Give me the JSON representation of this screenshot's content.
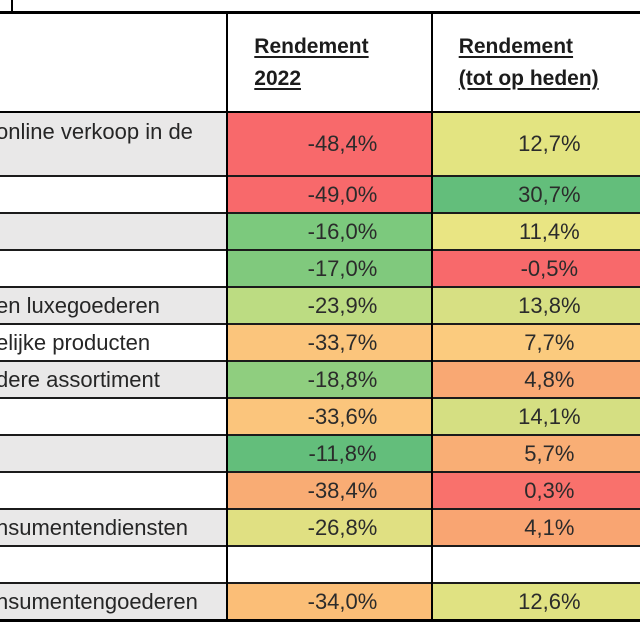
{
  "page": {
    "background": "#FFFFFF"
  },
  "table": {
    "header": {
      "label_col": "",
      "col_2022_line1": "Rendement",
      "col_2022_line2": "2022",
      "col_heden_line1": "Rendement",
      "col_heden_line2": "(tot op heden)"
    },
    "colors": {
      "band_gray": "#E9E8E8",
      "band_white": "#FFFFFF",
      "scale_min_red": "#F8696B",
      "scale_mid_yellow": "#FFEB84",
      "scale_max_green": "#63BE7B",
      "border": "#000000",
      "text": "#262626"
    },
    "rows": [
      {
        "label": "online verkoop in de",
        "lbg": "#E9E8E8",
        "v2022": "-48,4%",
        "c2022": "#F8696B",
        "vheden": "12,7%",
        "cheden": "#E3E481"
      },
      {
        "label": "",
        "lbg": "#FFFFFF",
        "v2022": "-49,0%",
        "c2022": "#F8696B",
        "vheden": "30,7%",
        "cheden": "#63BE7B"
      },
      {
        "label": "",
        "lbg": "#E9E8E8",
        "v2022": "-16,0%",
        "c2022": "#7CC97D",
        "vheden": "11,4%",
        "cheden": "#E9E583"
      },
      {
        "label": "",
        "lbg": "#FFFFFF",
        "v2022": "-17,0%",
        "c2022": "#80C97D",
        "vheden": "-0,5%",
        "cheden": "#F8696B"
      },
      {
        "label": "en luxegoederen",
        "lbg": "#E9E8E8",
        "v2022": "-23,9%",
        "c2022": "#BCDC82",
        "vheden": "13,8%",
        "cheden": "#D7E083"
      },
      {
        "label": "elijke producten",
        "lbg": "#FFFFFF",
        "v2022": "-33,7%",
        "c2022": "#FBC57C",
        "vheden": "7,7%",
        "cheden": "#FBCB7E"
      },
      {
        "label": "dere assortiment",
        "lbg": "#E9E8E8",
        "v2022": "-18,8%",
        "c2022": "#8FCE7F",
        "vheden": "4,8%",
        "cheden": "#F9A873"
      },
      {
        "label": "",
        "lbg": "#FFFFFF",
        "v2022": "-33,6%",
        "c2022": "#FBC57C",
        "vheden": "14,1%",
        "cheden": "#D5DF82"
      },
      {
        "label": "",
        "lbg": "#E9E8E8",
        "v2022": "-11,8%",
        "c2022": "#63BE7B",
        "vheden": "5,7%",
        "cheden": "#F9AE75"
      },
      {
        "label": "",
        "lbg": "#FFFFFF",
        "v2022": "-38,4%",
        "c2022": "#F9AC74",
        "vheden": "0,3%",
        "cheden": "#F9716C"
      },
      {
        "label": "nsumentendiensten",
        "lbg": "#E9E8E8",
        "v2022": "-26,8%",
        "c2022": "#E0E082",
        "vheden": "4,1%",
        "cheden": "#F9A572"
      },
      {
        "label": "",
        "lbg": "#FFFFFF",
        "v2022": "",
        "c2022": "#FFFFFF",
        "vheden": "",
        "cheden": "#FFFFFF"
      },
      {
        "label": "nsumentengoederen",
        "lbg": "#E9E8E8",
        "v2022": "-34,0%",
        "c2022": "#FBBE77",
        "vheden": "12,6%",
        "cheden": "#E0E282"
      }
    ]
  },
  "chart_data": {
    "type": "table",
    "title": "",
    "columns": [
      "",
      "Rendement 2022",
      "Rendement (tot op heden)"
    ],
    "rows": [
      [
        "…online verkoop in de",
        -48.4,
        12.7
      ],
      [
        "",
        -49.0,
        30.7
      ],
      [
        "",
        -16.0,
        11.4
      ],
      [
        "",
        -17.0,
        -0.5
      ],
      [
        "…en luxegoederen",
        -23.9,
        13.8
      ],
      [
        "…elijke producten",
        -33.7,
        7.7
      ],
      [
        "…dere assortiment",
        -18.8,
        4.8
      ],
      [
        "",
        -33.6,
        14.1
      ],
      [
        "",
        -11.8,
        5.7
      ],
      [
        "",
        -38.4,
        0.3
      ],
      [
        "…nsumentendiensten",
        -26.8,
        4.1
      ],
      [
        "",
        null,
        null
      ],
      [
        "…nsumentengoederen",
        -34.0,
        12.6
      ]
    ],
    "value_unit": "%",
    "notes": "conditional color scale red #F8696B → yellow #FFEB84 → green #63BE7B"
  }
}
